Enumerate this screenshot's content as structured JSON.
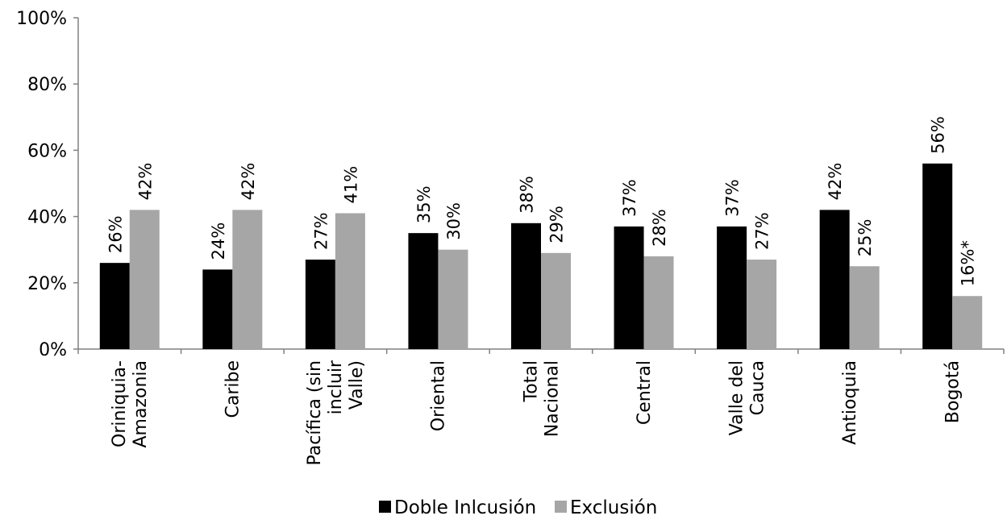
{
  "chart_data": {
    "type": "bar",
    "title": "",
    "xlabel": "",
    "ylabel": "",
    "ylim": [
      0,
      100
    ],
    "y_ticks": [
      0,
      20,
      40,
      60,
      80,
      100
    ],
    "y_tick_labels": [
      "0%",
      "20%",
      "40%",
      "60%",
      "80%",
      "100%"
    ],
    "grid": false,
    "legend_position": "bottom",
    "categories": [
      [
        "Oriniquia-",
        "Amazonia"
      ],
      [
        "Caribe"
      ],
      [
        "Pacífica (sin",
        "incluir",
        "Valle)"
      ],
      [
        "Oriental"
      ],
      [
        "Total",
        "Nacional"
      ],
      [
        "Central"
      ],
      [
        "Valle del",
        "Cauca"
      ],
      [
        "Antioquia"
      ],
      [
        "Bogotá"
      ]
    ],
    "series": [
      {
        "name": "Doble Inlcusión",
        "color": "#000000",
        "values": [
          26,
          24,
          27,
          35,
          38,
          37,
          37,
          42,
          56
        ],
        "labels": [
          "26%",
          "24%",
          "27%",
          "35%",
          "38%",
          "37%",
          "37%",
          "42%",
          "56%"
        ]
      },
      {
        "name": "Exclusión",
        "color": "#a6a6a6",
        "values": [
          42,
          42,
          41,
          30,
          29,
          28,
          27,
          25,
          16
        ],
        "labels": [
          "42%",
          "42%",
          "41%",
          "30%",
          "29%",
          "28%",
          "27%",
          "25%",
          "16%*"
        ]
      }
    ]
  }
}
